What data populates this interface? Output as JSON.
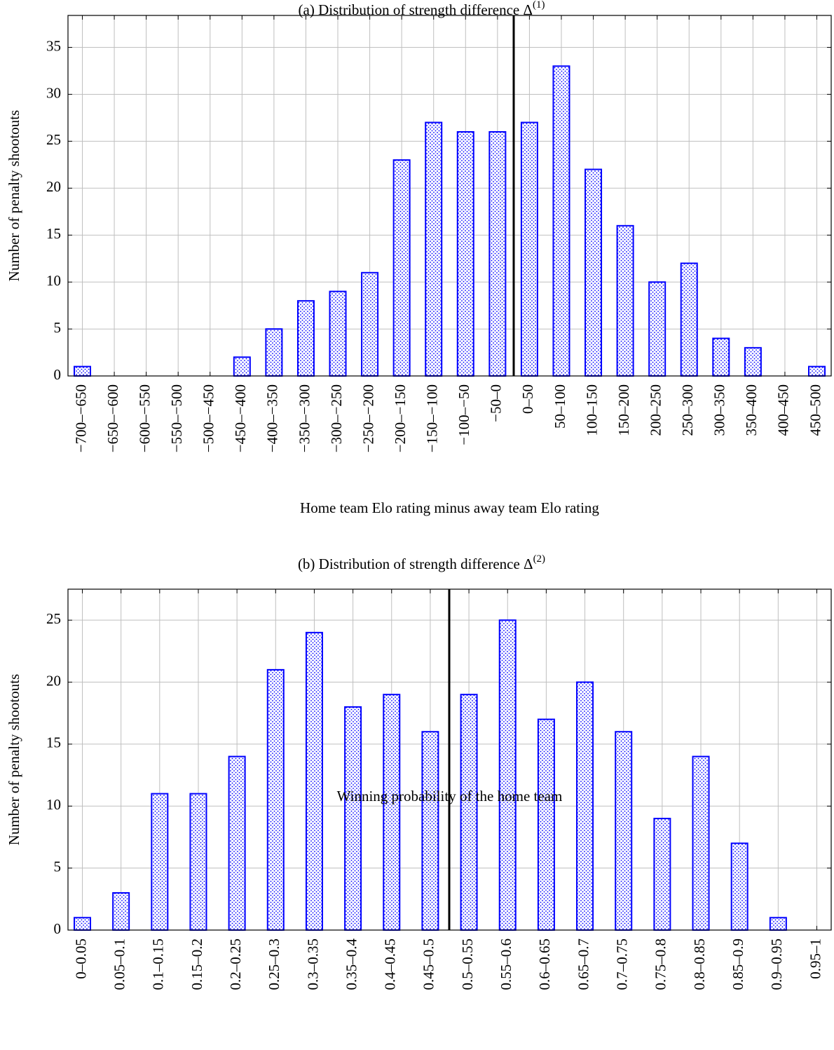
{
  "chart_data": [
    {
      "type": "bar",
      "title": "(a) Distribution of strength difference Δ",
      "title_superscript": "(1)",
      "xlabel": "Home team Elo rating minus away team Elo rating",
      "ylabel": "Number of penalty shootouts",
      "categories": [
        "−700–−650",
        "−650–−600",
        "−600–−550",
        "−550–−500",
        "−500–−450",
        "−450–−400",
        "−400–−350",
        "−350–−300",
        "−300–−250",
        "−250–−200",
        "−200–−150",
        "−150–−100",
        "−100–−50",
        "−50–0",
        "0–50",
        "50–100",
        "100–150",
        "150–200",
        "200–250",
        "250–300",
        "300–350",
        "350–400",
        "400–450",
        "450–500"
      ],
      "values": [
        1,
        0,
        0,
        0,
        0,
        2,
        5,
        8,
        9,
        11,
        23,
        27,
        26,
        26,
        27,
        33,
        22,
        16,
        10,
        12,
        4,
        3,
        0,
        1
      ],
      "color": "#0000ff",
      "ylim": [
        0,
        38.4
      ],
      "yticks": [
        0,
        5,
        10,
        15,
        20,
        25,
        30,
        35
      ],
      "grid": true
    },
    {
      "type": "bar",
      "title": "(b) Distribution of strength difference Δ",
      "title_superscript": "(2)",
      "xlabel": "Winning probability of the home team",
      "ylabel": "Number of penalty shootouts",
      "categories": [
        "0–0.05",
        "0.05–0.1",
        "0.1–0.15",
        "0.15–0.2",
        "0.2–0.25",
        "0.25–0.3",
        "0.3–0.35",
        "0.35–0.4",
        "0.4–0.45",
        "0.45–0.5",
        "0.5–0.55",
        "0.55–0.6",
        "0.6–0.65",
        "0.65–0.7",
        "0.7–0.75",
        "0.75–0.8",
        "0.8–0.85",
        "0.85–0.9",
        "0.9–0.95",
        "0.95–1"
      ],
      "values": [
        1,
        3,
        11,
        11,
        14,
        21,
        24,
        18,
        19,
        16,
        19,
        25,
        17,
        20,
        16,
        9,
        14,
        7,
        1,
        0
      ],
      "color": "#0000ff",
      "ylim": [
        0,
        27.5
      ],
      "yticks": [
        0,
        5,
        10,
        15,
        20,
        25
      ],
      "grid": true
    }
  ]
}
